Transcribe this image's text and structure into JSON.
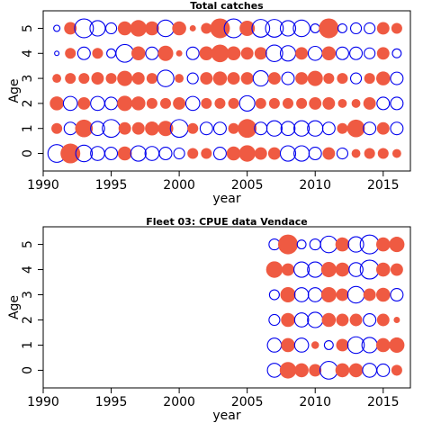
{
  "chart_data": [
    {
      "type": "bubble-residuals",
      "title": "Total catches",
      "xlabel": "year",
      "ylabel": "Age",
      "xlim": [
        1990,
        2017
      ],
      "ylim": [
        -0.7,
        5.7
      ],
      "xticks": [
        1990,
        1995,
        2000,
        2005,
        2010,
        2015
      ],
      "yticks": [
        0,
        1,
        2,
        3,
        4,
        5
      ],
      "grid": false,
      "legend": "none",
      "colors": {
        "positive": "#ef5a42",
        "negative": "#0000ee"
      },
      "encoding": "filled red = positive residual, open blue = negative residual, area proportional to magnitude",
      "ages": [
        0,
        1,
        2,
        3,
        4,
        5
      ],
      "years": [
        1991,
        1992,
        1993,
        1994,
        1995,
        1996,
        1997,
        1998,
        1999,
        2000,
        2001,
        2002,
        2003,
        2004,
        2005,
        2006,
        2007,
        2008,
        2009,
        2010,
        2011,
        2012,
        2013,
        2014,
        2015,
        2016
      ],
      "residuals": {
        "5": [
          -0.1,
          0.4,
          -0.9,
          -0.6,
          -0.3,
          0.5,
          0.7,
          0.5,
          -0.7,
          0.5,
          0.1,
          0.3,
          1.0,
          -0.9,
          0.6,
          -0.8,
          -0.8,
          -0.6,
          -0.7,
          -0.2,
          1.0,
          -0.2,
          -0.3,
          -0.3,
          0.4,
          0.3
        ],
        "4": [
          -0.05,
          0.3,
          -0.4,
          0.3,
          -0.2,
          -0.8,
          0.5,
          -0.4,
          0.6,
          0.1,
          -0.4,
          0.5,
          0.8,
          0.5,
          0.4,
          0.4,
          -0.7,
          -0.6,
          0.4,
          -0.5,
          0.5,
          -0.4,
          -0.4,
          -0.3,
          0.4,
          -0.2
        ],
        "3": [
          0.2,
          0.3,
          0.3,
          0.4,
          0.3,
          0.6,
          0.4,
          0.3,
          -0.7,
          0.2,
          -0.3,
          0.4,
          0.5,
          0.4,
          0.4,
          -0.6,
          0.4,
          -0.4,
          0.4,
          0.6,
          0.3,
          0.3,
          -0.3,
          0.3,
          0.5,
          -0.4
        ],
        "2": [
          0.5,
          -0.5,
          0.4,
          -0.5,
          -0.4,
          0.6,
          0.5,
          0.3,
          0.3,
          0.4,
          -0.5,
          0.3,
          0.3,
          0.3,
          -0.6,
          0.3,
          0.3,
          0.3,
          0.3,
          0.4,
          0.4,
          0.2,
          0.2,
          0.4,
          -0.4,
          -0.4
        ],
        "1": [
          0.3,
          -0.4,
          0.8,
          -0.5,
          -0.8,
          0.4,
          0.4,
          0.5,
          0.6,
          -0.8,
          0.3,
          -0.4,
          -0.4,
          0.3,
          0.9,
          -0.4,
          -0.6,
          -0.5,
          -0.6,
          -0.6,
          -0.4,
          0.3,
          0.8,
          -0.4,
          0.4,
          -0.4
        ],
        "0": [
          -0.8,
          1.0,
          -0.7,
          -0.5,
          -0.4,
          0.5,
          -0.6,
          -0.5,
          -0.4,
          -0.3,
          0.3,
          0.3,
          -0.4,
          0.5,
          0.7,
          0.4,
          0.4,
          -0.6,
          -0.6,
          -0.4,
          0.4,
          -0.3,
          0.2,
          0.3,
          0.3,
          0.2
        ]
      }
    },
    {
      "type": "bubble-residuals",
      "title": "Fleet 03:  CPUE data Vendace",
      "xlabel": "year",
      "ylabel": "Age",
      "xlim": [
        1990,
        2017
      ],
      "ylim": [
        -0.7,
        5.7
      ],
      "xticks": [
        1990,
        1995,
        2000,
        2005,
        2010,
        2015
      ],
      "yticks": [
        0,
        1,
        2,
        3,
        4,
        5
      ],
      "grid": false,
      "legend": "none",
      "colors": {
        "positive": "#ef5a42",
        "negative": "#0000ee"
      },
      "encoding": "filled red = positive residual, open blue = negative residual, area proportional to magnitude",
      "ages": [
        0,
        1,
        2,
        3,
        4,
        5
      ],
      "years": [
        2007,
        2008,
        2009,
        2010,
        2011,
        2012,
        2013,
        2014,
        2015,
        2016
      ],
      "residuals": {
        "5": [
          -0.3,
          1.0,
          -0.2,
          -0.3,
          -0.7,
          0.5,
          -0.6,
          -0.9,
          0.5,
          0.6
        ],
        "4": [
          0.7,
          0.4,
          -0.6,
          -0.6,
          0.6,
          0.5,
          -0.5,
          -0.9,
          0.5,
          0.4
        ],
        "3": [
          -0.25,
          0.6,
          -0.5,
          -0.5,
          0.6,
          0.4,
          -0.7,
          0.4,
          0.5,
          -0.4
        ],
        "2": [
          -0.3,
          0.5,
          -0.5,
          -0.6,
          0.5,
          0.4,
          0.4,
          -0.4,
          0.4,
          0.1
        ],
        "1": [
          -0.5,
          0.5,
          -0.5,
          0.15,
          -0.2,
          0.4,
          -0.7,
          -0.6,
          0.5,
          0.6
        ],
        "0": [
          -0.5,
          0.7,
          0.5,
          0.4,
          -0.8,
          0.5,
          0.5,
          -0.5,
          -0.4,
          0.3
        ]
      }
    }
  ]
}
